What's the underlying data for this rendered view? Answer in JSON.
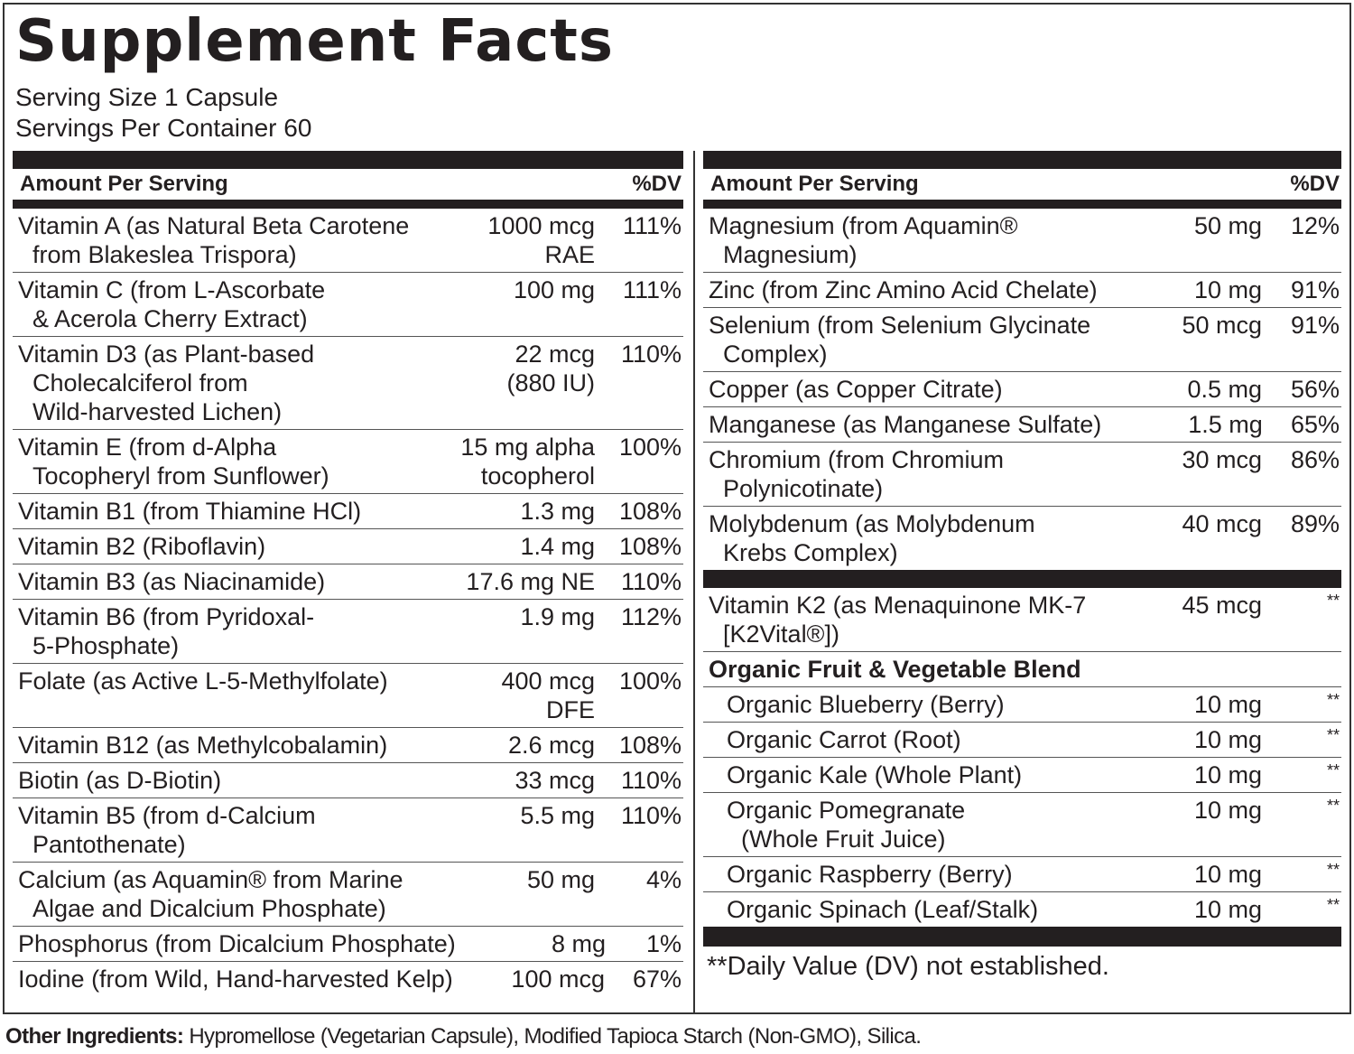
{
  "title": "Supplement Facts",
  "serving_size": "Serving Size 1 Capsule",
  "servings_per_container": "Servings Per Container 60",
  "left_panel": {
    "header": {
      "amount": "Amount Per Serving",
      "dv": "%DV"
    },
    "rows": [
      {
        "name": [
          "Vitamin A (as Natural Beta Carotene",
          "from Blakeslea Trispora)"
        ],
        "amount": [
          "1000 mcg",
          "RAE"
        ],
        "dv": "111%"
      },
      {
        "name": [
          "Vitamin C (from L-Ascorbate",
          "& Acerola Cherry Extract)"
        ],
        "amount": [
          "100 mg"
        ],
        "dv": "111%"
      },
      {
        "name": [
          "Vitamin D3 (as Plant-based",
          "Cholecalciferol from",
          "Wild-harvested Lichen)"
        ],
        "amount": [
          "22 mcg",
          "(880 IU)"
        ],
        "dv": "110%"
      },
      {
        "name": [
          "Vitamin E (from d-Alpha",
          "Tocopheryl from Sunflower)"
        ],
        "amount": [
          "15 mg alpha",
          "tocopherol"
        ],
        "dv": "100%"
      },
      {
        "name": [
          "Vitamin B1 (from Thiamine HCl)"
        ],
        "amount": [
          "1.3 mg"
        ],
        "dv": "108%"
      },
      {
        "name": [
          "Vitamin B2 (Riboflavin)"
        ],
        "amount": [
          "1.4 mg"
        ],
        "dv": "108%"
      },
      {
        "name": [
          "Vitamin B3 (as Niacinamide)"
        ],
        "amount": [
          "17.6 mg NE"
        ],
        "dv": "110%"
      },
      {
        "name": [
          "Vitamin B6 (from Pyridoxal-",
          "5-Phosphate)"
        ],
        "amount": [
          "1.9 mg"
        ],
        "dv": "112%"
      },
      {
        "name": [
          "Folate (as Active L-5-Methylfolate)"
        ],
        "amount": [
          "400 mcg",
          "DFE"
        ],
        "dv": "100%"
      },
      {
        "name": [
          "Vitamin B12 (as Methylcobalamin)"
        ],
        "amount": [
          "2.6 mcg"
        ],
        "dv": "108%"
      },
      {
        "name": [
          "Biotin (as D-Biotin)"
        ],
        "amount": [
          "33 mcg"
        ],
        "dv": "110%"
      },
      {
        "name": [
          "Vitamin B5 (from d-Calcium",
          "Pantothenate)"
        ],
        "amount": [
          "5.5 mg"
        ],
        "dv": "110%"
      },
      {
        "name": [
          "Calcium (as Aquamin® from Marine",
          "Algae and Dicalcium Phosphate)"
        ],
        "amount": [
          "50 mg"
        ],
        "dv": "4%"
      },
      {
        "name": [
          "Phosphorus (from Dicalcium Phosphate)"
        ],
        "amount": [
          "8 mg"
        ],
        "dv": "1%"
      },
      {
        "name": [
          "Iodine (from Wild, Hand-harvested Kelp)"
        ],
        "amount": [
          "100 mcg"
        ],
        "dv": "67%"
      }
    ]
  },
  "right_panel": {
    "header": {
      "amount": "Amount Per Serving",
      "dv": "%DV"
    },
    "rows": [
      {
        "name": [
          "Magnesium (from Aquamin®",
          "Magnesium)"
        ],
        "amount": [
          "50 mg"
        ],
        "dv": "12%"
      },
      {
        "name": [
          "Zinc (from Zinc Amino Acid Chelate)"
        ],
        "amount": [
          "10 mg"
        ],
        "dv": "91%"
      },
      {
        "name": [
          "Selenium (from Selenium Glycinate",
          "Complex)"
        ],
        "amount": [
          "50 mcg"
        ],
        "dv": "91%"
      },
      {
        "name": [
          "Copper (as Copper Citrate)"
        ],
        "amount": [
          "0.5 mg"
        ],
        "dv": "56%"
      },
      {
        "name": [
          "Manganese (as Manganese Sulfate)"
        ],
        "amount": [
          "1.5 mg"
        ],
        "dv": "65%"
      },
      {
        "name": [
          "Chromium (from Chromium",
          "Polynicotinate)"
        ],
        "amount": [
          "30 mcg"
        ],
        "dv": "86%"
      },
      {
        "name": [
          "Molybdenum (as Molybdenum",
          "Krebs Complex)"
        ],
        "amount": [
          "40 mcg"
        ],
        "dv": "89%"
      }
    ],
    "other_rows": [
      {
        "name": [
          "Vitamin K2 (as Menaquinone MK-7",
          "[K2Vital®])"
        ],
        "amount": [
          "45 mcg"
        ],
        "dv": "**"
      }
    ],
    "blend": {
      "title": "Organic Fruit & Vegetable Blend",
      "rows": [
        {
          "name": [
            "Organic Blueberry (Berry)"
          ],
          "amount": [
            "10 mg"
          ],
          "dv": "**"
        },
        {
          "name": [
            "Organic Carrot (Root)"
          ],
          "amount": [
            "10 mg"
          ],
          "dv": "**"
        },
        {
          "name": [
            "Organic Kale (Whole Plant)"
          ],
          "amount": [
            "10 mg"
          ],
          "dv": "**"
        },
        {
          "name": [
            "Organic Pomegranate",
            "(Whole Fruit Juice)"
          ],
          "amount": [
            "10 mg"
          ],
          "dv": "**"
        },
        {
          "name": [
            "Organic Raspberry (Berry)"
          ],
          "amount": [
            "10 mg"
          ],
          "dv": "**"
        },
        {
          "name": [
            "Organic  Spinach (Leaf/Stalk)"
          ],
          "amount": [
            "10 mg"
          ],
          "dv": "**"
        }
      ]
    },
    "footnote": "**Daily Value (DV) not established."
  },
  "other_ingredients": {
    "label": "Other Ingredients:",
    "text": "Hypromellose (Vegetarian Capsule), Modified Tapioca Starch (Non-GMO), Silica."
  }
}
